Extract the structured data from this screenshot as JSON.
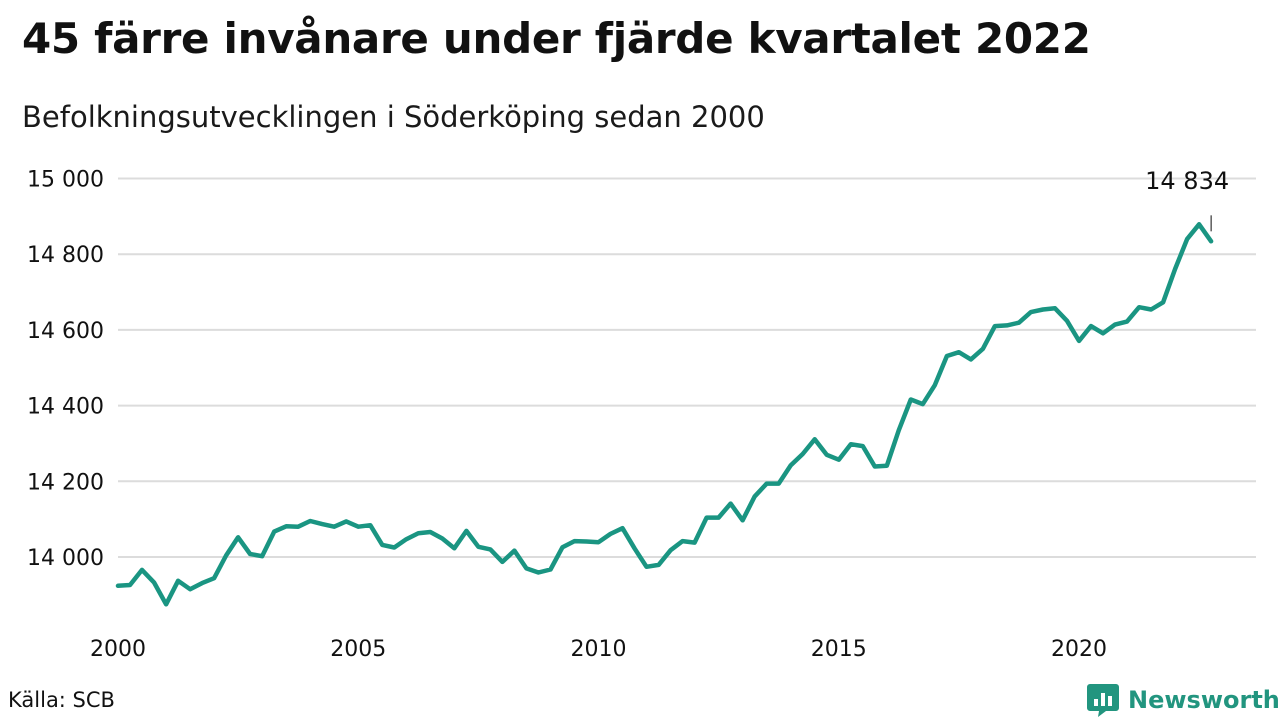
{
  "title": "45 färre invånare under fjärde kvartalet 2022",
  "subtitle": "Befolkningsutvecklingen i Söderköping sedan 2000",
  "source": "Källa: SCB",
  "brand": "Newsworthy",
  "colors": {
    "line": "#1a9582",
    "grid": "#dcdcdc",
    "brand": "#22957f"
  },
  "chart_data": {
    "type": "line",
    "title": "45 färre invånare under fjärde kvartalet 2022",
    "subtitle": "Befolkningsutvecklingen i Söderköping sedan 2000",
    "xlabel": "",
    "ylabel": "",
    "xlim": [
      2000,
      2023
    ],
    "ylim": [
      13860,
      15020
    ],
    "x_ticks": [
      {
        "value": 2000,
        "label": "2000"
      },
      {
        "value": 2005,
        "label": "2005"
      },
      {
        "value": 2010,
        "label": "2010"
      },
      {
        "value": 2015,
        "label": "2015"
      },
      {
        "value": 2020,
        "label": "2020"
      }
    ],
    "y_ticks": [
      {
        "value": 14000,
        "label": "14 000"
      },
      {
        "value": 14200,
        "label": "14 200"
      },
      {
        "value": 14400,
        "label": "14 400"
      },
      {
        "value": 14600,
        "label": "14 600"
      },
      {
        "value": 14800,
        "label": "14 800"
      },
      {
        "value": 15000,
        "label": "15 000"
      }
    ],
    "grid": true,
    "annotation": {
      "label": "14 834",
      "x": 2022.75,
      "y": 14834
    },
    "series": [
      {
        "x": [
          2000.0,
          2000.25,
          2000.5,
          2000.75,
          2001.0,
          2001.25,
          2001.5,
          2001.75,
          2002.0,
          2002.25,
          2002.5,
          2002.75,
          2003.0,
          2003.25,
          2003.5,
          2003.75,
          2004.0,
          2004.25,
          2004.5,
          2004.75,
          2005.0,
          2005.25,
          2005.5,
          2005.75,
          2006.0,
          2006.25,
          2006.5,
          2006.75,
          2007.0,
          2007.25,
          2007.5,
          2007.75,
          2008.0,
          2008.25,
          2008.5,
          2008.75,
          2009.0,
          2009.25,
          2009.5,
          2009.75,
          2010.0,
          2010.25,
          2010.5,
          2010.75,
          2011.0,
          2011.25,
          2011.5,
          2011.75,
          2012.0,
          2012.25,
          2012.5,
          2012.75,
          2013.0,
          2013.25,
          2013.5,
          2013.75,
          2014.0,
          2014.25,
          2014.5,
          2014.75,
          2015.0,
          2015.25,
          2015.5,
          2015.75,
          2016.0,
          2016.25,
          2016.5,
          2016.75,
          2017.0,
          2017.25,
          2017.5,
          2017.75,
          2018.0,
          2018.25,
          2018.5,
          2018.75,
          2019.0,
          2019.25,
          2019.5,
          2019.75,
          2020.0,
          2020.25,
          2020.5,
          2020.75,
          2021.0,
          2021.25,
          2021.5,
          2021.75,
          2022.0,
          2022.25,
          2022.5,
          2022.75
        ],
        "values": [
          13924,
          13926,
          13966,
          13933,
          13875,
          13937,
          13915,
          13931,
          13944,
          14004,
          14052,
          14008,
          14002,
          14067,
          14081,
          14080,
          14095,
          14087,
          14080,
          14094,
          14080,
          14084,
          14032,
          14025,
          14047,
          14063,
          14066,
          14049,
          14023,
          14069,
          14027,
          14020,
          13987,
          14017,
          13970,
          13959,
          13967,
          14026,
          14042,
          14041,
          14039,
          14061,
          14076,
          14023,
          13974,
          13979,
          14018,
          14042,
          14038,
          14104,
          14104,
          14141,
          14097,
          14160,
          14194,
          14194,
          14242,
          14272,
          14311,
          14270,
          14257,
          14298,
          14293,
          14239,
          14241,
          14335,
          14416,
          14404,
          14454,
          14531,
          14541,
          14522,
          14550,
          14610,
          14612,
          14619,
          14647,
          14654,
          14657,
          14624,
          14571,
          14610,
          14591,
          14614,
          14622,
          14660,
          14654,
          14673,
          14761,
          14840,
          14879,
          14834
        ]
      }
    ]
  }
}
